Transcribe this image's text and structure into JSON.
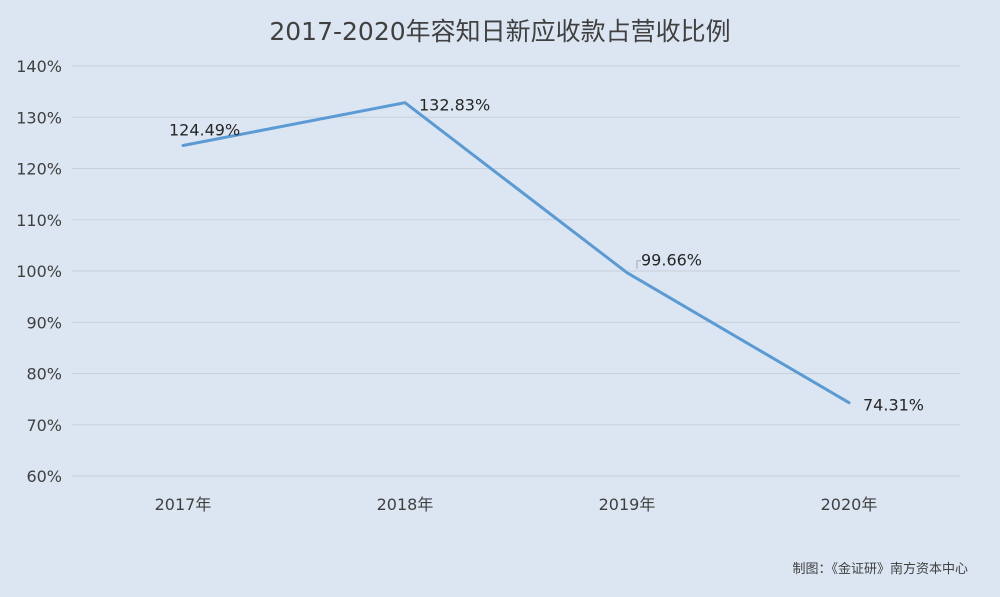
{
  "chart_data": {
    "type": "line",
    "title": "2017-2020年容知日新应收款占营收比例",
    "categories": [
      "2017年",
      "2018年",
      "2019年",
      "2020年"
    ],
    "series": [
      {
        "values": [
          124.49,
          132.83,
          99.66,
          74.31
        ],
        "labels": [
          "124.49%",
          "132.83%",
          "99.66%",
          "74.31%"
        ],
        "color": "#5b9bd5"
      }
    ],
    "ylim": [
      60,
      140
    ],
    "yticks": [
      60,
      70,
      80,
      90,
      100,
      110,
      120,
      130,
      140
    ],
    "ytick_labels": [
      "60%",
      "70%",
      "80%",
      "90%",
      "100%",
      "110%",
      "120%",
      "130%",
      "140%"
    ],
    "grid": true,
    "legend": "none"
  },
  "source_note": "制图：《金证研》南方资本中心"
}
